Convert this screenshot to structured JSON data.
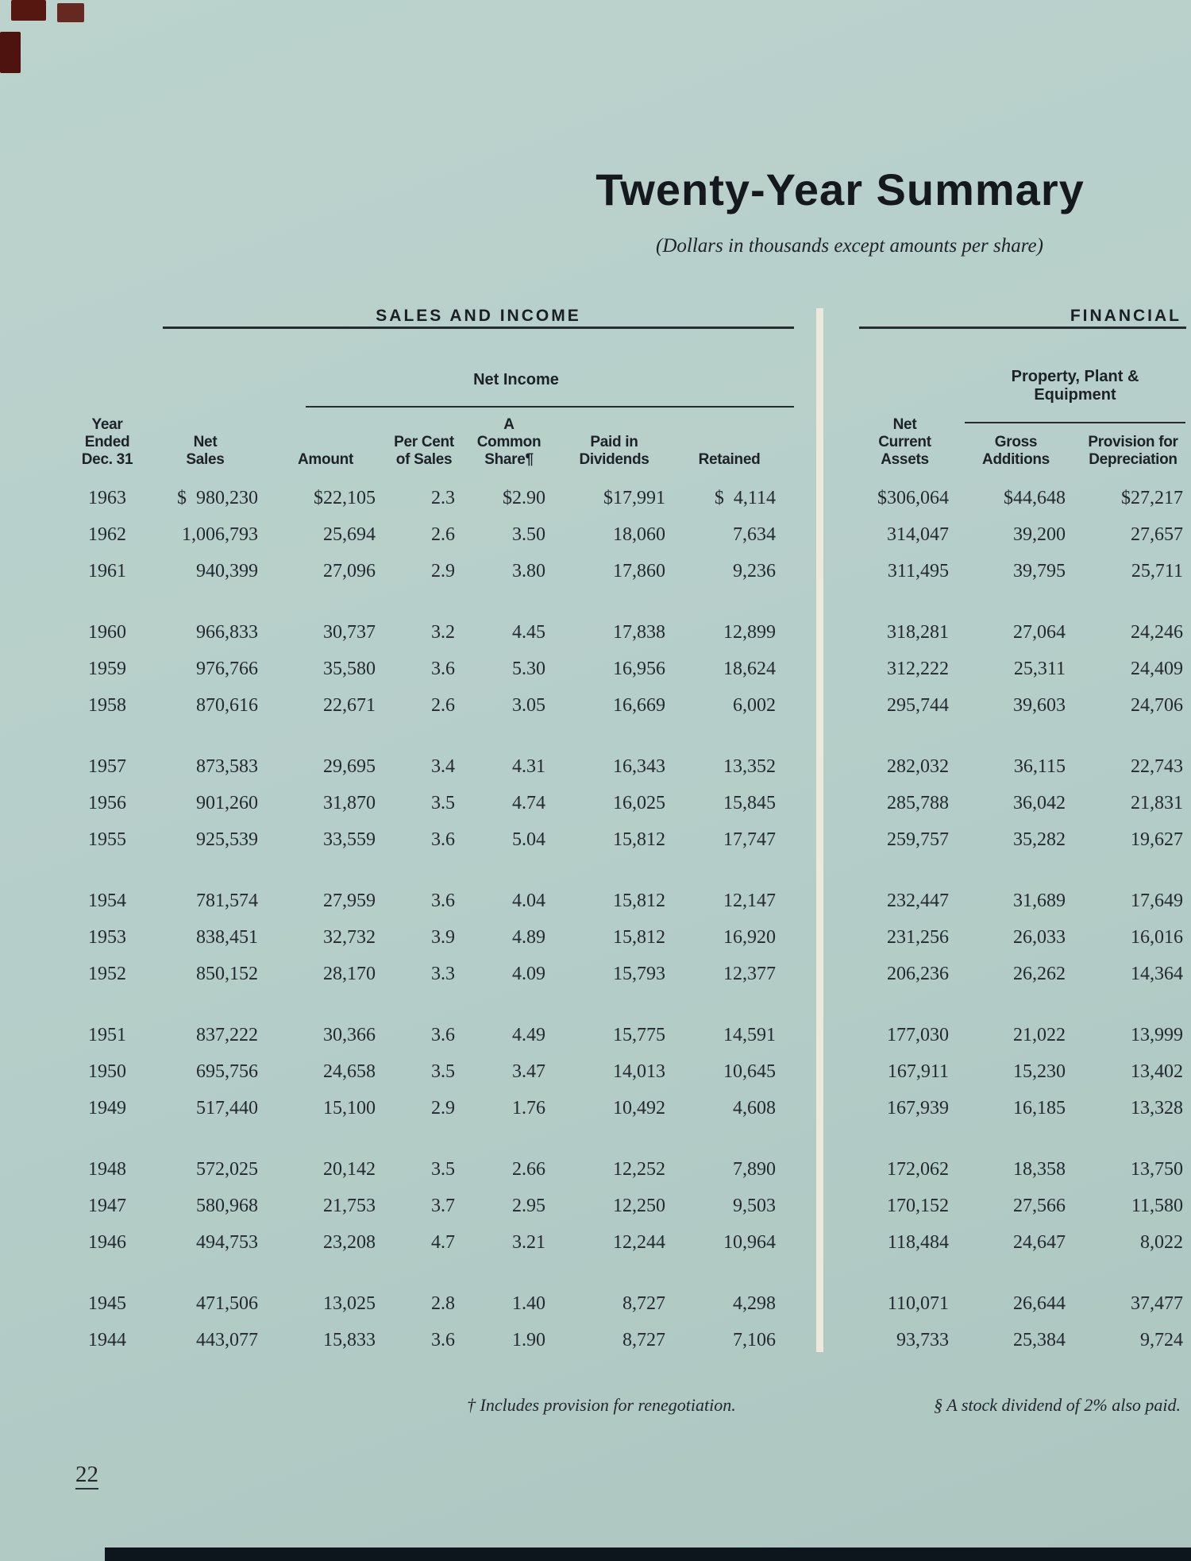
{
  "title": "Twenty-Year Summary",
  "subtitle": "(Dollars in thousands except amounts per share)",
  "sections": {
    "sales": "SALES AND INCOME",
    "financial": "FINANCIAL"
  },
  "spanning": {
    "net_income": "Net Income",
    "ppe": [
      "Property, Plant &",
      "Equipment"
    ]
  },
  "table": {
    "columns": [
      {
        "key": "year",
        "lines": [
          "Year",
          "Ended",
          "Dec. 31"
        ]
      },
      {
        "key": "net_sales",
        "lines": [
          "Net",
          "Sales"
        ]
      },
      {
        "key": "amount",
        "lines": [
          "Amount"
        ]
      },
      {
        "key": "pct",
        "lines": [
          "Per Cent",
          "of Sales"
        ]
      },
      {
        "key": "share",
        "lines": [
          "A",
          "Common",
          "Share¶"
        ]
      },
      {
        "key": "dividends",
        "lines": [
          "Paid in",
          "Dividends"
        ]
      },
      {
        "key": "retained",
        "lines": [
          "Retained"
        ]
      },
      {
        "key": "gap",
        "lines": []
      },
      {
        "key": "nca",
        "lines": [
          "Net",
          "Current",
          "Assets"
        ]
      },
      {
        "key": "gross",
        "lines": [
          "Gross",
          "Additions"
        ]
      },
      {
        "key": "provision",
        "lines": [
          "Provision for",
          "Depreciation"
        ]
      }
    ],
    "groups": [
      [
        {
          "year": "1963",
          "net_sales": "$  980,230",
          "amount": "$22,105",
          "pct": "2.3",
          "share": "$2.90",
          "dividends": "$17,991",
          "retained": "$  4,114",
          "nca": "$306,064",
          "gross": "$44,648",
          "provision": "$27,217"
        },
        {
          "year": "1962",
          "net_sales": "1,006,793",
          "amount": "25,694",
          "pct": "2.6",
          "share": "3.50",
          "dividends": "18,060",
          "retained": "7,634",
          "nca": "314,047",
          "gross": "39,200",
          "provision": "27,657"
        },
        {
          "year": "1961",
          "net_sales": "940,399",
          "amount": "27,096",
          "pct": "2.9",
          "share": "3.80",
          "dividends": "17,860",
          "retained": "9,236",
          "nca": "311,495",
          "gross": "39,795",
          "provision": "25,711"
        }
      ],
      [
        {
          "year": "1960",
          "net_sales": "966,833",
          "amount": "30,737",
          "pct": "3.2",
          "share": "4.45",
          "dividends": "17,838",
          "retained": "12,899",
          "nca": "318,281",
          "gross": "27,064",
          "provision": "24,246"
        },
        {
          "year": "1959",
          "net_sales": "976,766",
          "amount": "35,580",
          "pct": "3.6",
          "share": "5.30",
          "dividends": "16,956",
          "retained": "18,624",
          "nca": "312,222",
          "gross": "25,311",
          "provision": "24,409"
        },
        {
          "year": "1958",
          "net_sales": "870,616",
          "amount": "22,671",
          "pct": "2.6",
          "share": "3.05",
          "dividends": "16,669",
          "retained": "6,002",
          "nca": "295,744",
          "gross": "39,603",
          "provision": "24,706"
        }
      ],
      [
        {
          "year": "1957",
          "net_sales": "873,583",
          "amount": "29,695",
          "pct": "3.4",
          "share": "4.31",
          "dividends": "16,343",
          "retained": "13,352",
          "nca": "282,032",
          "gross": "36,115",
          "provision": "22,743"
        },
        {
          "year": "1956",
          "net_sales": "901,260",
          "amount": "31,870",
          "pct": "3.5",
          "share": "4.74",
          "dividends": "16,025",
          "retained": "15,845",
          "nca": "285,788",
          "gross": "36,042",
          "provision": "21,831"
        },
        {
          "year": "1955",
          "net_sales": "925,539",
          "amount": "33,559",
          "pct": "3.6",
          "share": "5.04",
          "dividends": "15,812",
          "retained": "17,747",
          "nca": "259,757",
          "gross": "35,282",
          "provision": "19,627"
        }
      ],
      [
        {
          "year": "1954",
          "net_sales": "781,574",
          "amount": "27,959",
          "pct": "3.6",
          "share": "4.04",
          "dividends": "15,812",
          "retained": "12,147",
          "nca": "232,447",
          "gross": "31,689",
          "provision": "17,649"
        },
        {
          "year": "1953",
          "net_sales": "838,451",
          "amount": "32,732",
          "pct": "3.9",
          "share": "4.89",
          "dividends": "15,812",
          "retained": "16,920",
          "nca": "231,256",
          "gross": "26,033",
          "provision": "16,016"
        },
        {
          "year": "1952",
          "net_sales": "850,152",
          "amount": "28,170",
          "pct": "3.3",
          "share": "4.09",
          "dividends": "15,793",
          "retained": "12,377",
          "nca": "206,236",
          "gross": "26,262",
          "provision": "14,364"
        }
      ],
      [
        {
          "year": "1951",
          "net_sales": "837,222",
          "amount": "30,366",
          "pct": "3.6",
          "share": "4.49",
          "dividends": "15,775",
          "retained": "14,591",
          "nca": "177,030",
          "gross": "21,022",
          "provision": "13,999"
        },
        {
          "year": "1950",
          "net_sales": "695,756",
          "amount": "24,658",
          "pct": "3.5",
          "share": "3.47",
          "dividends": "14,013",
          "retained": "10,645",
          "nca": "167,911",
          "gross": "15,230",
          "provision": "13,402"
        },
        {
          "year": "1949",
          "net_sales": "517,440",
          "amount": "15,100",
          "pct": "2.9",
          "share": "1.76",
          "dividends": "10,492",
          "retained": "4,608",
          "nca": "167,939",
          "gross": "16,185",
          "provision": "13,328"
        }
      ],
      [
        {
          "year": "1948",
          "net_sales": "572,025",
          "amount": "20,142",
          "pct": "3.5",
          "share": "2.66",
          "dividends": "12,252",
          "retained": "7,890",
          "nca": "172,062",
          "gross": "18,358",
          "provision": "13,750"
        },
        {
          "year": "1947",
          "net_sales": "580,968",
          "amount": "21,753",
          "pct": "3.7",
          "share": "2.95",
          "dividends": "12,250",
          "retained": "9,503",
          "nca": "170,152",
          "gross": "27,566",
          "provision": "11,580"
        },
        {
          "year": "1946",
          "net_sales": "494,753",
          "amount": "23,208",
          "pct": "4.7",
          "share": "3.21",
          "dividends": "12,244",
          "retained": "10,964",
          "nca": "118,484",
          "gross": "24,647",
          "provision": "8,022"
        }
      ],
      [
        {
          "year": "1945",
          "net_sales": "471,506",
          "amount": "13,025",
          "pct": "2.8",
          "share": "1.40",
          "dividends": "8,727",
          "retained": "4,298",
          "nca": "110,071",
          "gross": "26,644",
          "provision": "37,477"
        },
        {
          "year": "1944",
          "net_sales": "443,077",
          "amount": "15,833",
          "pct": "3.6",
          "share": "1.90",
          "dividends": "8,727",
          "retained": "7,106",
          "nca": "93,733",
          "gross": "25,384",
          "provision": "9,724"
        }
      ]
    ]
  },
  "footnotes": {
    "renegotiation": "† Includes provision for renegotiation.",
    "stock_dividend": "§ A stock dividend of 2% also paid."
  },
  "page_number": "22",
  "colors": {
    "background": "#b6cec9",
    "ink": "#20262c",
    "rule": "#272c31",
    "divider_bar": "#ece9da",
    "bottom_bar": "#0d151d"
  }
}
